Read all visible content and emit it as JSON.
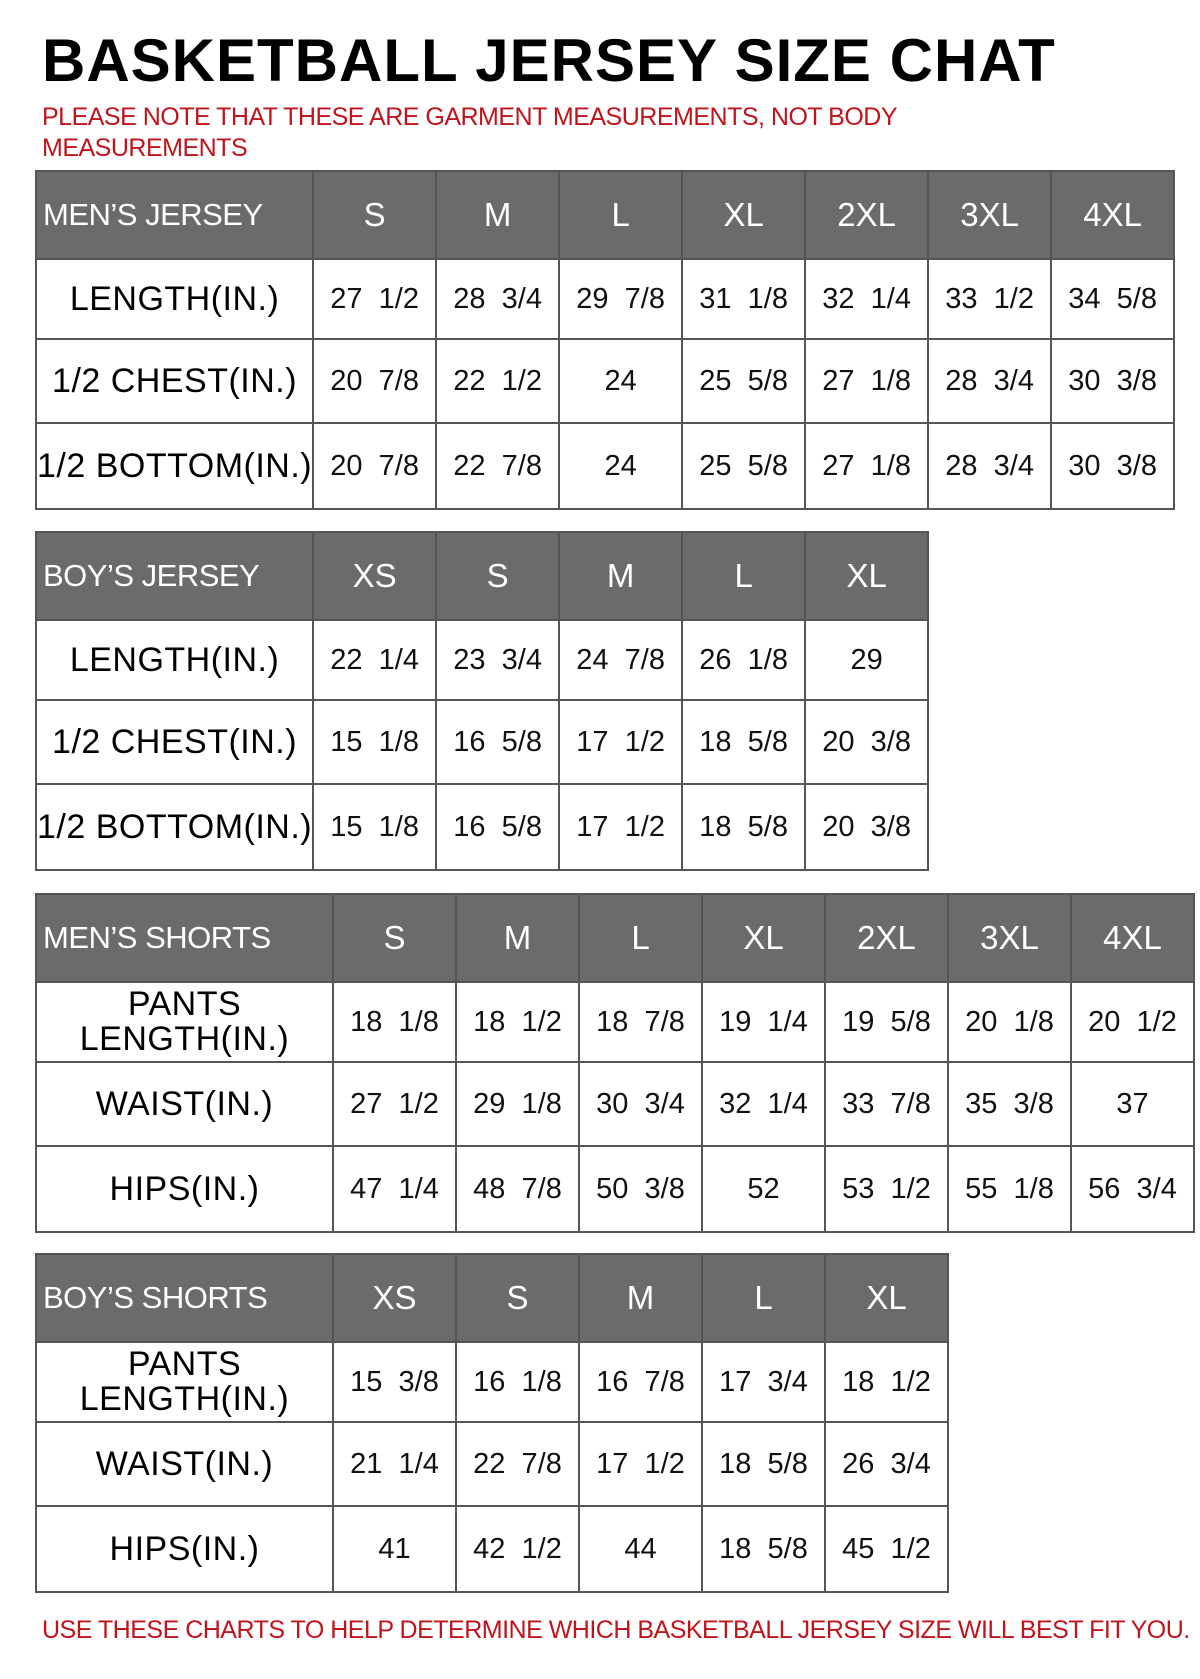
{
  "title": "BASKETBALL JERSEY SIZE CHAT",
  "note": "PLEASE NOTE THAT THESE ARE GARMENT MEASUREMENTS, NOT BODY MEASUREMENTS",
  "footer": "USE THESE CHARTS TO HELP DETERMINE WHICH BASKETBALL JERSEY SIZE WILL BEST FIT YOU.",
  "colors": {
    "header_bg": "#6b6b6b",
    "note_red": "#c0141c"
  },
  "tables": [
    {
      "name": "MEN’S JERSEY",
      "sizes": [
        "S",
        "M",
        "L",
        "XL",
        "2XL",
        "3XL",
        "4XL"
      ],
      "rows": [
        {
          "label": "LENGTH(IN.)",
          "values": [
            "27  1/2",
            "28  3/4",
            "29  7/8",
            "31  1/8",
            "32  1/4",
            "33  1/2",
            "34  5/8"
          ]
        },
        {
          "label": "1/2  CHEST(IN.)",
          "values": [
            "20  7/8",
            "22  1/2",
            "24",
            "25  5/8",
            "27  1/8",
            "28  3/4",
            "30  3/8"
          ]
        },
        {
          "label": "1/2  BOTTOM(IN.)",
          "values": [
            "20  7/8",
            "22  7/8",
            "24",
            "25  5/8",
            "27  1/8",
            "28  3/4",
            "30  3/8"
          ]
        }
      ]
    },
    {
      "name": "BOY’S JERSEY",
      "sizes": [
        "XS",
        "S",
        "M",
        "L",
        "XL"
      ],
      "rows": [
        {
          "label": "LENGTH(IN.)",
          "values": [
            "22  1/4",
            "23  3/4",
            "24  7/8",
            "26  1/8",
            "29"
          ]
        },
        {
          "label": "1/2  CHEST(IN.)",
          "values": [
            "15  1/8",
            "16  5/8",
            "17  1/2",
            "18  5/8",
            "20  3/8"
          ]
        },
        {
          "label": "1/2  BOTTOM(IN.)",
          "values": [
            "15  1/8",
            "16  5/8",
            "17  1/2",
            "18  5/8",
            "20  3/8"
          ]
        }
      ]
    },
    {
      "name": "MEN’S SHORTS",
      "sizes": [
        "S",
        "M",
        "L",
        "XL",
        "2XL",
        "3XL",
        "4XL"
      ],
      "rows": [
        {
          "label": "PANTS LENGTH(IN.)",
          "values": [
            "18  1/8",
            "18  1/2",
            "18  7/8",
            "19  1/4",
            "19  5/8",
            "20  1/8",
            "20  1/2"
          ]
        },
        {
          "label": "WAIST(IN.)",
          "values": [
            "27  1/2",
            "29  1/8",
            "30  3/4",
            "32  1/4",
            "33  7/8",
            "35  3/8",
            "37"
          ]
        },
        {
          "label": "HIPS(IN.)",
          "values": [
            "47  1/4",
            "48  7/8",
            "50  3/8",
            "52",
            "53  1/2",
            "55  1/8",
            "56  3/4"
          ]
        }
      ]
    },
    {
      "name": "BOY’S SHORTS",
      "sizes": [
        "XS",
        "S",
        "M",
        "L",
        "XL"
      ],
      "rows": [
        {
          "label": "PANTS LENGTH(IN.)",
          "values": [
            "15  3/8",
            "16  1/8",
            "16  7/8",
            "17  3/4",
            "18  1/2"
          ]
        },
        {
          "label": "WAIST(IN.)",
          "values": [
            "21  1/4",
            "22  7/8",
            "17  1/2",
            "18  5/8",
            "26  3/4"
          ]
        },
        {
          "label": "HIPS(IN.)",
          "values": [
            "41",
            "42  1/2",
            "44",
            "18  5/8",
            "45  1/2"
          ]
        }
      ]
    }
  ]
}
